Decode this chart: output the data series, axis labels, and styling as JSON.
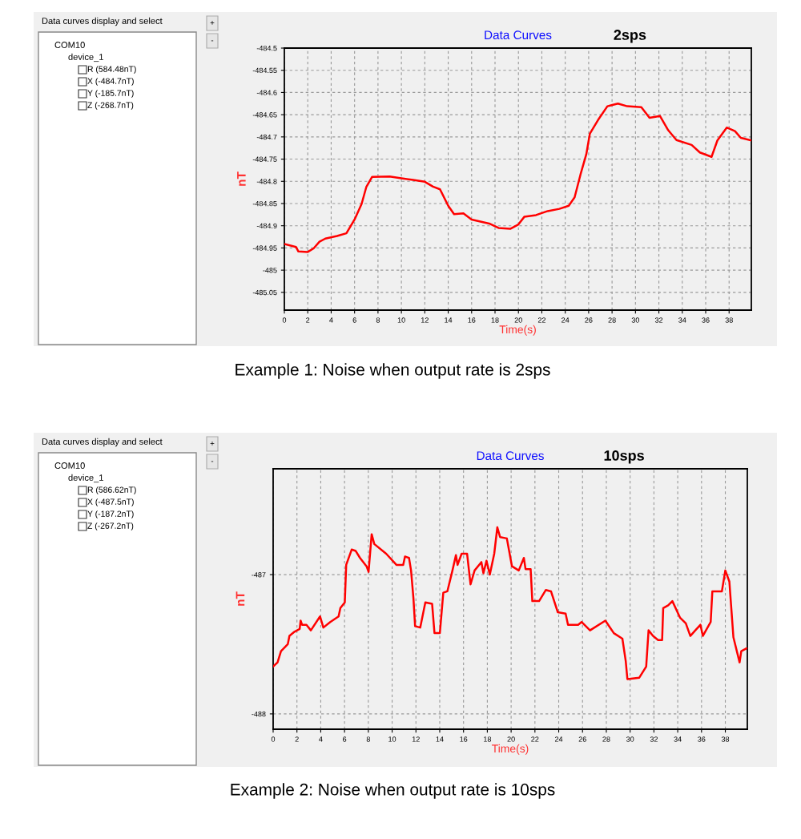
{
  "chart_data": [
    {
      "type": "line",
      "title": "Data Curves",
      "subtitle": "2sps",
      "xlabel": "Time(s)",
      "ylabel": "nT",
      "xlim": [
        0,
        39.9
      ],
      "ylim": [
        -485.09,
        -484.5
      ],
      "xticks": [
        0,
        2,
        4,
        6,
        8,
        10,
        12,
        14,
        16,
        18,
        20,
        22,
        24,
        26,
        28,
        30,
        32,
        34,
        36,
        38
      ],
      "yticks": [
        -484.5,
        -484.55,
        -484.6,
        -484.65,
        -484.7,
        -484.75,
        -484.8,
        -484.85,
        -484.9,
        -484.95,
        -485,
        -485.05
      ],
      "grid": true,
      "line_style": "solid",
      "marker": "none",
      "series": [
        {
          "color": "#ff0000",
          "x": [
            0,
            1,
            1.2,
            2,
            2.5,
            3,
            3.5,
            4.5,
            5.3,
            6,
            6.6,
            7,
            7.5,
            9,
            10,
            11,
            12,
            12.7,
            13.3,
            14,
            14.5,
            15.3,
            16,
            17.5,
            18.3,
            19.3,
            20,
            20.5,
            21.5,
            22.5,
            23.5,
            24.3,
            24.8,
            25.3,
            25.8,
            26.1,
            26.8,
            27.6,
            28.5,
            29.3,
            30.5,
            31.2,
            32.1,
            32.8,
            33.5,
            34.8,
            35.5,
            36.5,
            37,
            37.8,
            38.5,
            39,
            39.9
          ],
          "values": [
            -484.941,
            -484.948,
            -484.958,
            -484.959,
            -484.951,
            -484.936,
            -484.929,
            -484.923,
            -484.917,
            -484.886,
            -484.851,
            -484.813,
            -484.79,
            -484.789,
            -484.793,
            -484.797,
            -484.801,
            -484.812,
            -484.818,
            -484.855,
            -484.874,
            -484.872,
            -484.886,
            -484.895,
            -484.905,
            -484.907,
            -484.897,
            -484.88,
            -484.876,
            -484.867,
            -484.862,
            -484.855,
            -484.836,
            -484.785,
            -484.739,
            -484.693,
            -484.662,
            -484.631,
            -484.625,
            -484.631,
            -484.633,
            -484.657,
            -484.653,
            -484.685,
            -484.707,
            -484.718,
            -484.735,
            -484.745,
            -484.708,
            -484.679,
            -484.687,
            -484.702,
            -484.708
          ]
        }
      ],
      "annotations": [
        "Data curves display and select",
        "COM10",
        "device_1",
        "R (584.48nT)",
        "X (-484.7nT)",
        "Y (-185.7nT)",
        "Z (-268.7nT)",
        "+",
        "-",
        "Example 1: Noise when output rate is 2sps"
      ]
    },
    {
      "type": "line",
      "title": "Data Curves",
      "subtitle": "10sps",
      "xlabel": "Time(s)",
      "ylabel": "nT",
      "xlim": [
        0,
        39.85
      ],
      "ylim": [
        -488.11,
        -486.24
      ],
      "xticks": [
        0,
        2,
        4,
        6,
        8,
        10,
        12,
        14,
        16,
        18,
        20,
        22,
        24,
        26,
        28,
        30,
        32,
        34,
        36,
        38
      ],
      "yticks": [
        -487,
        -488
      ],
      "grid": true,
      "line_style": "solid",
      "marker": "none",
      "series": [
        {
          "color": "#ff0000",
          "x": [
            0,
            0.37,
            0.66,
            1.23,
            1.37,
            1.8,
            2.23,
            2.31,
            2.43,
            2.8,
            3.17,
            3.94,
            4.22,
            4.8,
            5.5,
            5.65,
            6.02,
            6.14,
            6.6,
            6.94,
            7.3,
            7.85,
            8.02,
            8.28,
            8.5,
            9.5,
            10.36,
            10.93,
            11.08,
            11.42,
            11.59,
            11.79,
            11.93,
            12.36,
            12.79,
            13.36,
            13.56,
            14.01,
            14.3,
            14.64,
            15.07,
            15.36,
            15.5,
            15.84,
            16.3,
            16.59,
            16.93,
            17.5,
            17.67,
            17.93,
            18.21,
            18.58,
            18.84,
            19.07,
            19.64,
            20.07,
            20.64,
            21.07,
            21.21,
            21.64,
            21.78,
            22.35,
            22.92,
            23.35,
            23.92,
            24.58,
            24.78,
            25.63,
            25.92,
            26.63,
            27.92,
            28.63,
            29.35,
            29.63,
            29.77,
            30.77,
            31.35,
            31.55,
            31.92,
            32.35,
            32.69,
            32.78,
            33.2,
            33.55,
            34.2,
            34.68,
            35.06,
            35.48,
            35.91,
            36.11,
            36.77,
            36.91,
            37.71,
            38.0,
            38.34,
            38.68,
            39.2,
            39.34,
            39.77
          ],
          "values": [
            -487.66,
            -487.63,
            -487.55,
            -487.5,
            -487.44,
            -487.41,
            -487.39,
            -487.33,
            -487.36,
            -487.36,
            -487.4,
            -487.3,
            -487.38,
            -487.34,
            -487.3,
            -487.24,
            -487.2,
            -486.93,
            -486.82,
            -486.83,
            -486.88,
            -486.94,
            -486.98,
            -486.71,
            -486.78,
            -486.85,
            -486.93,
            -486.93,
            -486.87,
            -486.88,
            -486.97,
            -487.17,
            -487.37,
            -487.38,
            -487.2,
            -487.21,
            -487.42,
            -487.42,
            -487.13,
            -487.12,
            -486.97,
            -486.86,
            -486.93,
            -486.85,
            -486.85,
            -487.07,
            -486.97,
            -486.91,
            -486.99,
            -486.9,
            -487.0,
            -486.85,
            -486.66,
            -486.73,
            -486.74,
            -486.94,
            -486.97,
            -486.88,
            -486.96,
            -486.96,
            -487.19,
            -487.19,
            -487.11,
            -487.12,
            -487.27,
            -487.28,
            -487.36,
            -487.36,
            -487.34,
            -487.4,
            -487.33,
            -487.42,
            -487.46,
            -487.62,
            -487.75,
            -487.74,
            -487.66,
            -487.4,
            -487.44,
            -487.47,
            -487.47,
            -487.24,
            -487.22,
            -487.19,
            -487.31,
            -487.35,
            -487.44,
            -487.4,
            -487.36,
            -487.44,
            -487.34,
            -487.12,
            -487.12,
            -486.97,
            -487.05,
            -487.45,
            -487.63,
            -487.55,
            -487.53
          ]
        }
      ],
      "annotations": [
        "Data curves display and select",
        "COM10",
        "device_1",
        "R (586.62nT)",
        "X (-487.5nT)",
        "Y (-187.2nT)",
        "Z (-267.2nT)",
        "+",
        "-",
        "Example 2: Noise when output rate is 10sps"
      ]
    }
  ]
}
